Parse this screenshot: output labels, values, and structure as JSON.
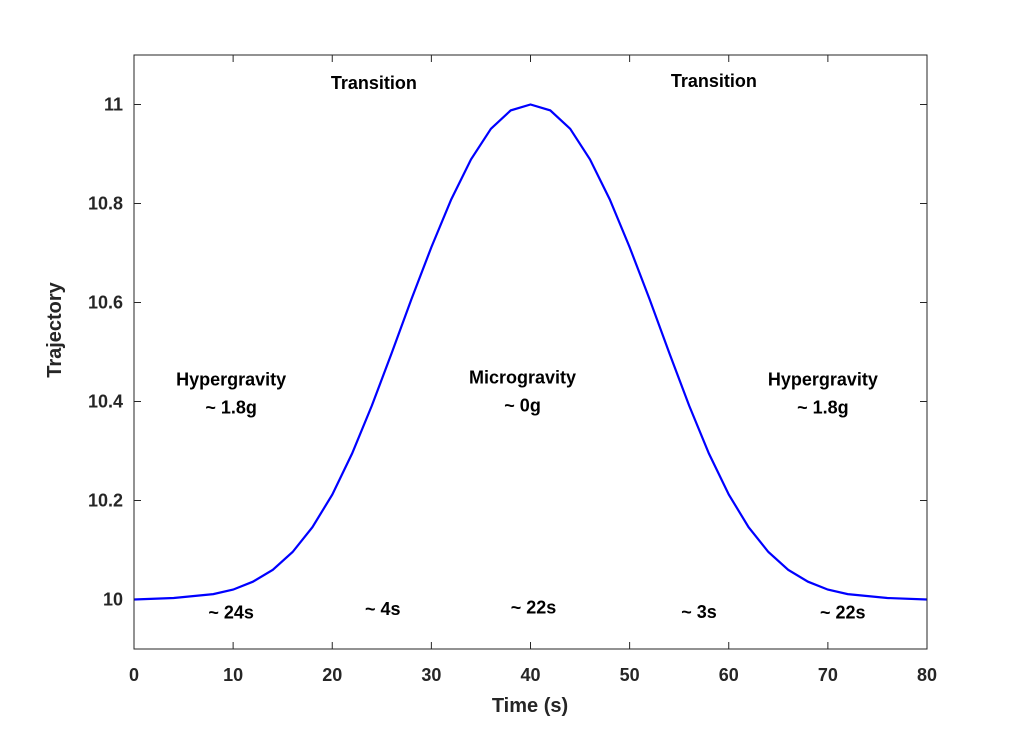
{
  "chart_data": {
    "type": "line",
    "xlabel": "Time (s)",
    "ylabel": "Trajectory",
    "xlim": [
      0,
      80
    ],
    "ylim": [
      9.9,
      11.1
    ],
    "xticks": [
      "0",
      "10",
      "20",
      "30",
      "40",
      "50",
      "60",
      "70",
      "80"
    ],
    "yticks": [
      "10",
      "10.2",
      "10.4",
      "10.6",
      "10.8",
      "11"
    ],
    "grid": false,
    "series": [
      {
        "color": "#0000ff",
        "x": [
          0,
          4,
          8,
          10,
          12,
          14,
          16,
          18,
          20,
          22,
          24,
          26,
          28,
          30,
          32,
          34,
          36,
          38,
          40,
          42,
          44,
          46,
          48,
          50,
          52,
          54,
          56,
          58,
          60,
          62,
          64,
          66,
          68,
          70,
          72,
          76,
          80
        ],
        "y": [
          10.0,
          10.003,
          10.011,
          10.02,
          10.036,
          10.06,
          10.096,
          10.146,
          10.212,
          10.295,
          10.392,
          10.498,
          10.607,
          10.712,
          10.808,
          10.889,
          10.951,
          10.988,
          11.0,
          10.988,
          10.951,
          10.889,
          10.808,
          10.712,
          10.607,
          10.498,
          10.392,
          10.295,
          10.212,
          10.146,
          10.096,
          10.06,
          10.036,
          10.02,
          10.011,
          10.003,
          10.0
        ]
      }
    ],
    "annotations": [
      {
        "lines": [
          "Transition"
        ],
        "x": 24.2,
        "y": 11.031
      },
      {
        "lines": [
          "Transition"
        ],
        "x": 58.5,
        "y": 11.035
      },
      {
        "lines": [
          "Hypergravity",
          "~ 1.8g"
        ],
        "x": 9.8,
        "y": 10.432
      },
      {
        "lines": [
          "Microgravity",
          "~ 0g"
        ],
        "x": 39.2,
        "y": 10.436
      },
      {
        "lines": [
          "Hypergravity",
          "~ 1.8g"
        ],
        "x": 69.5,
        "y": 10.432
      },
      {
        "lines": [
          "~ 24s"
        ],
        "x": 9.8,
        "y": 9.962
      },
      {
        "lines": [
          "~ 4s"
        ],
        "x": 25.1,
        "y": 9.969
      },
      {
        "lines": [
          "~ 22s"
        ],
        "x": 40.3,
        "y": 9.972
      },
      {
        "lines": [
          "~ 3s"
        ],
        "x": 57.0,
        "y": 9.963
      },
      {
        "lines": [
          "~ 22s"
        ],
        "x": 71.5,
        "y": 9.962
      }
    ]
  }
}
